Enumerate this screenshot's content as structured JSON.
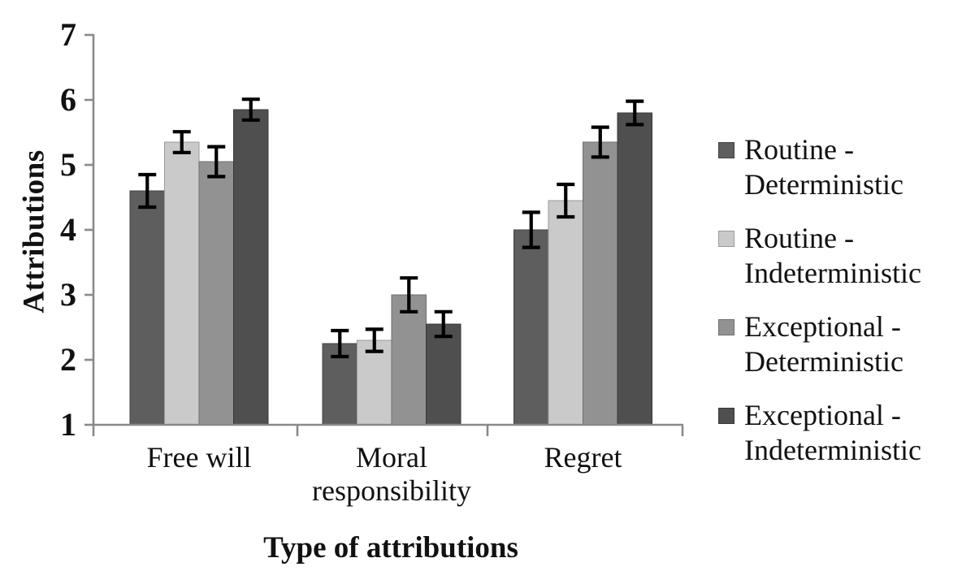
{
  "figure": {
    "background": "#ffffff",
    "text_color": "#111111"
  },
  "chart_data": {
    "type": "bar",
    "title": "",
    "xlabel": "Type of attributions",
    "ylabel": "Attributions",
    "ylim": [
      1,
      7
    ],
    "yticks": [
      1,
      2,
      3,
      4,
      5,
      6,
      7
    ],
    "categories": [
      "Free will",
      "Moral responsibility",
      "Regret"
    ],
    "series": [
      {
        "name": "Routine - Deterministic",
        "color": "#5e5e5e",
        "border": "#414141",
        "values": [
          4.6,
          2.25,
          4.0
        ],
        "errors": [
          0.25,
          0.2,
          0.27
        ]
      },
      {
        "name": "Routine - Indeterministic",
        "color": "#cacaca",
        "border": "#9a9a9a",
        "values": [
          5.35,
          2.3,
          4.45
        ],
        "errors": [
          0.16,
          0.17,
          0.25
        ]
      },
      {
        "name": "Exceptional - Deterministic",
        "color": "#929292",
        "border": "#6e6e6e",
        "values": [
          5.05,
          3.0,
          5.35
        ],
        "errors": [
          0.23,
          0.26,
          0.23
        ]
      },
      {
        "name": "Exceptional - Indeterministic",
        "color": "#4f4f4f",
        "border": "#383838",
        "values": [
          5.85,
          2.55,
          5.8
        ],
        "errors": [
          0.16,
          0.19,
          0.18
        ]
      }
    ],
    "error_bars": true,
    "grid": false,
    "legend_position": "right",
    "axis_color": "#8a8a8a",
    "error_bar_color": "#000000"
  }
}
